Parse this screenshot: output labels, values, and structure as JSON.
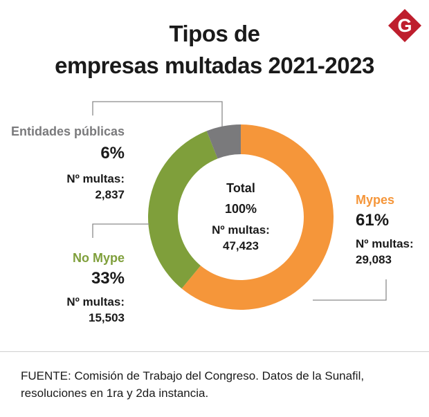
{
  "header": {
    "title_line1": "Tipos de",
    "title_line2": "empresas multadas 2021-2023",
    "logo_letter": "G"
  },
  "colors": {
    "mypes": "#F5963A",
    "no_mype": "#7F9F3B",
    "entidades": "#7A7A7C",
    "logo": "#BE1E2D",
    "leader": "#8a8a8a"
  },
  "chart_data": {
    "type": "pie",
    "title": "Tipos de empresas multadas 2021-2023",
    "donut": true,
    "categories": [
      "Mypes",
      "No Mype",
      "Entidades públicas"
    ],
    "values": [
      61,
      33,
      6
    ],
    "multas": [
      29083,
      15503,
      2837
    ],
    "total": {
      "label": "Total",
      "percent": "100%",
      "multas_label": "Nº multas:",
      "multas_value": "47,423"
    }
  },
  "labels": {
    "entidades": {
      "name": "Entidades públicas",
      "percent": "6%",
      "multas_label": "Nº multas:",
      "multas_value": "2,837"
    },
    "no_mype": {
      "name": "No Mype",
      "percent": "33%",
      "multas_label": "Nº multas:",
      "multas_value": "15,503"
    },
    "mypes": {
      "name": "Mypes",
      "percent": "61%",
      "multas_label": "Nº multas:",
      "multas_value": "29,083"
    }
  },
  "footer": {
    "source_line1": "FUENTE: Comisión de Trabajo del Congreso. Datos de la Sunafil,",
    "source_line2": "resoluciones en 1ra y 2da instancia."
  }
}
